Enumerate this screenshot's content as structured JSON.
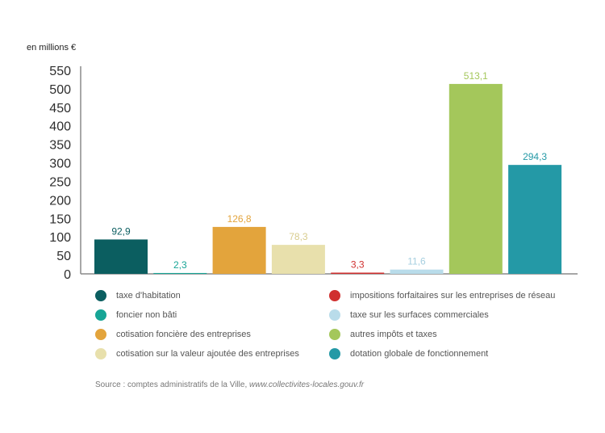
{
  "chart_data": {
    "type": "bar",
    "unit_label": "en millions €",
    "ylim": [
      0,
      550
    ],
    "y_ticks": [
      0,
      50,
      100,
      150,
      200,
      250,
      300,
      350,
      400,
      450,
      500,
      550
    ],
    "grid": false,
    "legend_placement": "bottom",
    "categories": [
      "taxe d'habitation",
      "foncier non bâti",
      "cotisation foncière des entreprises",
      "cotisation sur la valeur ajoutée des entreprises",
      "impositions forfaitaires sur les entreprises de réseau",
      "taxe sur les surfaces commerciales",
      "autres impôts et taxes",
      "dotation globale de fonctionnement"
    ],
    "values": [
      92.9,
      2.3,
      126.8,
      78.3,
      3.3,
      11.6,
      513.1,
      294.3
    ],
    "value_labels": [
      "92,9",
      "2,3",
      "126,8",
      "78,3",
      "3,3",
      "11,6",
      "513,1",
      "294,3"
    ],
    "colors": [
      "#0b5e60",
      "#17a596",
      "#e3a43c",
      "#e8e0ac",
      "#d0302f",
      "#b9dcea",
      "#a4c75b",
      "#2499a6"
    ],
    "label_colors": [
      "#0b5e60",
      "#17a596",
      "#e3a43c",
      "#d8cc8e",
      "#d0302f",
      "#a6cfe0",
      "#a4c75b",
      "#2499a6"
    ]
  },
  "legend": [
    {
      "label": "taxe d'habitation",
      "color": "#0b5e60"
    },
    {
      "label": "foncier non bâti",
      "color": "#17a596"
    },
    {
      "label": "cotisation foncière des entreprises",
      "color": "#e3a43c"
    },
    {
      "label": "cotisation sur la valeur ajoutée des entreprises",
      "color": "#e8e0ac"
    },
    {
      "label": "impositions forfaitaires sur les entreprises de réseau",
      "color": "#d0302f"
    },
    {
      "label": "taxe sur les surfaces commerciales",
      "color": "#b9dcea"
    },
    {
      "label": "autres impôts et taxes",
      "color": "#a4c75b"
    },
    {
      "label": "dotation globale de fonctionnement",
      "color": "#2499a6"
    }
  ],
  "source": {
    "prefix": "Source : comptes administratifs de la Ville, ",
    "link": "www.collectivites-locales.gouv.fr"
  }
}
